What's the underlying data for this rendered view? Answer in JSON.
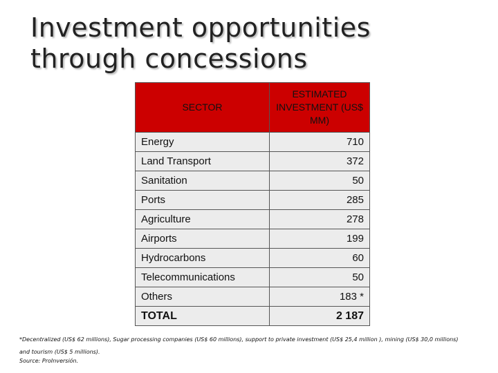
{
  "title": {
    "line1": "Investment opportunities",
    "line2": "through concessions"
  },
  "table": {
    "header_sector": "SECTOR",
    "header_investment": "ESTIMATED INVESTMENT (US$ MM)",
    "rows": [
      {
        "sector": "Energy",
        "value": "710"
      },
      {
        "sector": "Land Transport",
        "value": "372"
      },
      {
        "sector": "Sanitation",
        "value": "50"
      },
      {
        "sector": "Ports",
        "value": "285"
      },
      {
        "sector": "Agriculture",
        "value": "278"
      },
      {
        "sector": "Airports",
        "value": "199"
      },
      {
        "sector": "Hydrocarbons",
        "value": "60"
      },
      {
        "sector": "Telecommunications",
        "value": "50"
      },
      {
        "sector": "Others",
        "value": "183 *"
      }
    ],
    "total": {
      "sector": "TOTAL",
      "value": "2 187"
    }
  },
  "footnote": "*Decentralized (US$ 62 millions), Sugar processing companies (US$ 60 millions), support to private investment (US$ 25,4 million ), mining (US$ 30,0 millions) and tourism (US$ 5 millions).",
  "source": "Source: ProInversión.",
  "colors": {
    "header_bg": "#cc0000",
    "cell_bg": "#ececec",
    "border": "#555555"
  }
}
